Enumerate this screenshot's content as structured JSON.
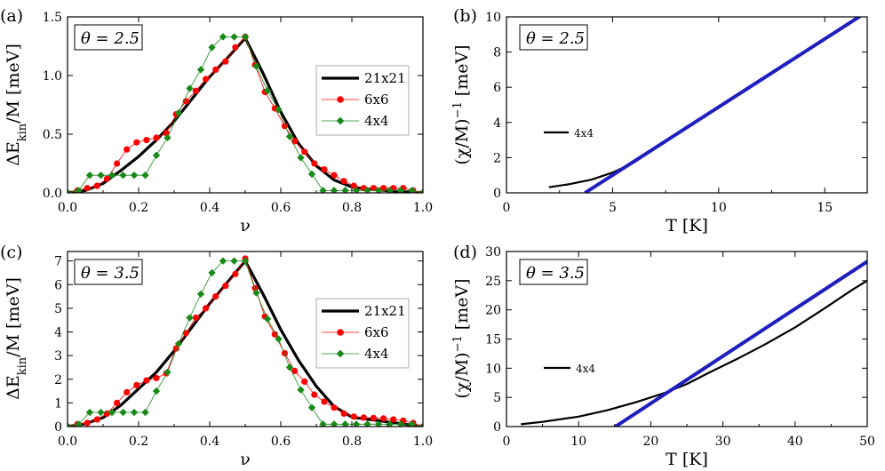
{
  "chart_data": [
    {
      "panel_label": "(a)",
      "type": "line",
      "annotation": "θ = 2.5",
      "xlabel": "ν",
      "ylabel_main": "ΔE",
      "ylabel_sub": "kin",
      "ylabel_rest": "/M [meV]",
      "xlim": [
        0.0,
        1.0
      ],
      "ylim": [
        0.0,
        1.5
      ],
      "xticks": [
        0.0,
        0.2,
        0.4,
        0.6,
        0.8,
        1.0
      ],
      "xtick_labels": [
        "0.0",
        "0.2",
        "0.4",
        "0.6",
        "0.8",
        "1.0"
      ],
      "yticks": [
        0.0,
        0.5,
        1.0,
        1.5
      ],
      "ytick_labels": [
        "0.0",
        "0.5",
        "1.0",
        "1.5"
      ],
      "legend_position": "right",
      "series": [
        {
          "name": "21x21",
          "color": "#000000",
          "style": "thick-line",
          "x": [
            0.0,
            0.05,
            0.1,
            0.15,
            0.2,
            0.25,
            0.3,
            0.35,
            0.4,
            0.45,
            0.5,
            0.55,
            0.6,
            0.65,
            0.7,
            0.75,
            0.8,
            0.85,
            0.9,
            0.95,
            1.0
          ],
          "y": [
            0.0,
            0.02,
            0.08,
            0.19,
            0.31,
            0.45,
            0.61,
            0.8,
            0.99,
            1.15,
            1.32,
            1.02,
            0.69,
            0.42,
            0.23,
            0.11,
            0.05,
            0.03,
            0.02,
            0.01,
            0.0
          ]
        },
        {
          "name": "6x6",
          "color": "#ff0000",
          "style": "circle-markers",
          "x": [
            0.0,
            0.0278,
            0.0556,
            0.0833,
            0.1111,
            0.1389,
            0.1667,
            0.1944,
            0.2222,
            0.25,
            0.2778,
            0.3056,
            0.3333,
            0.3611,
            0.3889,
            0.4167,
            0.4444,
            0.4722,
            0.5,
            0.5278,
            0.5556,
            0.5833,
            0.6111,
            0.6389,
            0.6667,
            0.6944,
            0.7222,
            0.75,
            0.7778,
            0.8056,
            0.8333,
            0.8611,
            0.8889,
            0.9167,
            0.9444,
            0.9722,
            1.0
          ],
          "y": [
            0.0,
            0.02,
            0.04,
            0.06,
            0.12,
            0.25,
            0.37,
            0.43,
            0.45,
            0.47,
            0.51,
            0.67,
            0.78,
            0.87,
            0.97,
            1.05,
            1.12,
            1.24,
            1.33,
            1.09,
            0.86,
            0.72,
            0.57,
            0.44,
            0.35,
            0.25,
            0.2,
            0.15,
            0.1,
            0.06,
            0.04,
            0.04,
            0.04,
            0.04,
            0.04,
            0.02,
            0.0
          ]
        },
        {
          "name": "4x4",
          "color": "#1a8a1a",
          "style": "diamond-markers",
          "x": [
            0.0,
            0.0313,
            0.0625,
            0.0938,
            0.125,
            0.1563,
            0.1875,
            0.2188,
            0.25,
            0.2813,
            0.3125,
            0.3438,
            0.375,
            0.4063,
            0.4375,
            0.4688,
            0.5,
            0.5313,
            0.5625,
            0.5938,
            0.625,
            0.6563,
            0.6875,
            0.7188,
            0.75,
            0.7813,
            0.8125,
            0.8438,
            0.875,
            0.9063,
            0.9375,
            0.9688,
            1.0
          ],
          "y": [
            0.0,
            0.02,
            0.15,
            0.15,
            0.15,
            0.15,
            0.15,
            0.15,
            0.32,
            0.47,
            0.68,
            0.89,
            1.05,
            1.24,
            1.33,
            1.33,
            1.33,
            1.08,
            0.87,
            0.71,
            0.48,
            0.3,
            0.16,
            0.02,
            0.02,
            0.02,
            0.02,
            0.02,
            0.02,
            0.02,
            0.02,
            0.02,
            0.0
          ]
        }
      ],
      "legend_labels": [
        "21x21",
        "6x6",
        "4x4"
      ]
    },
    {
      "panel_label": "(b)",
      "type": "line",
      "annotation": "θ = 2.5",
      "xlabel": "T [K]",
      "ylabel_main": "(χ/M)",
      "ylabel_sup": "−1",
      "ylabel_rest": " [meV]",
      "xlim": [
        0,
        17
      ],
      "ylim": [
        0,
        10
      ],
      "xticks": [
        0,
        5,
        10,
        15
      ],
      "xtick_labels": [
        "0",
        "5",
        "10",
        "15"
      ],
      "yticks": [
        0,
        2,
        4,
        6,
        8,
        10
      ],
      "ytick_labels": [
        "0",
        "2",
        "4",
        "6",
        "8",
        "10"
      ],
      "legend_position": "left-middle",
      "series": [
        {
          "name": "4x4",
          "color": "#000000",
          "style": "line",
          "x": [
            2.0,
            3.0,
            4.0,
            5.0,
            6.0,
            8.0,
            10.0,
            12.0,
            14.0,
            16.0,
            17.0
          ],
          "y": [
            0.32,
            0.5,
            0.75,
            1.15,
            1.72,
            3.3,
            4.85,
            6.4,
            7.95,
            9.5,
            10.3
          ]
        },
        {
          "name": "",
          "color": "#1f1fbf",
          "style": "fit-line",
          "x": [
            3.7,
            17.0
          ],
          "y": [
            0.0,
            10.3
          ]
        }
      ],
      "legend_labels": [
        "4x4"
      ]
    },
    {
      "panel_label": "(c)",
      "type": "line",
      "annotation": "θ = 3.5",
      "xlabel": "ν",
      "ylabel_main": "ΔE",
      "ylabel_sub": "kin",
      "ylabel_rest": "/M [meV]",
      "xlim": [
        0.0,
        1.0
      ],
      "ylim": [
        0,
        7.4
      ],
      "xticks": [
        0.0,
        0.2,
        0.4,
        0.6,
        0.8,
        1.0
      ],
      "xtick_labels": [
        "0.0",
        "0.2",
        "0.4",
        "0.6",
        "0.8",
        "1.0"
      ],
      "yticks": [
        0,
        1,
        2,
        3,
        4,
        5,
        6,
        7
      ],
      "ytick_labels": [
        "0",
        "1",
        "2",
        "3",
        "4",
        "5",
        "6",
        "7"
      ],
      "legend_position": "right",
      "series": [
        {
          "name": "21x21",
          "color": "#000000",
          "style": "thick-line",
          "x": [
            0.0,
            0.05,
            0.1,
            0.15,
            0.2,
            0.25,
            0.3,
            0.35,
            0.4,
            0.45,
            0.5,
            0.55,
            0.6,
            0.65,
            0.7,
            0.75,
            0.8,
            0.85,
            0.9,
            0.95,
            1.0
          ],
          "y": [
            0.0,
            0.12,
            0.38,
            0.9,
            1.6,
            2.3,
            3.2,
            4.2,
            5.2,
            6.1,
            7.0,
            5.6,
            4.1,
            2.8,
            1.7,
            0.85,
            0.4,
            0.3,
            0.2,
            0.1,
            0.0
          ]
        },
        {
          "name": "6x6",
          "color": "#ff0000",
          "style": "circle-markers",
          "x": [
            0.0,
            0.0278,
            0.0556,
            0.0833,
            0.1111,
            0.1389,
            0.1667,
            0.1944,
            0.2222,
            0.25,
            0.2778,
            0.3056,
            0.3333,
            0.3611,
            0.3889,
            0.4167,
            0.4444,
            0.4722,
            0.5,
            0.5278,
            0.5556,
            0.5833,
            0.6111,
            0.6389,
            0.6667,
            0.6944,
            0.7222,
            0.75,
            0.7778,
            0.8056,
            0.8333,
            0.8611,
            0.8889,
            0.9167,
            0.9444,
            0.9722,
            1.0
          ],
          "y": [
            0.0,
            0.1,
            0.15,
            0.3,
            0.55,
            1.0,
            1.45,
            1.75,
            1.95,
            2.05,
            2.25,
            3.3,
            3.95,
            4.6,
            5.0,
            5.5,
            5.95,
            6.45,
            7.1,
            5.85,
            4.65,
            3.9,
            3.1,
            2.35,
            1.9,
            1.35,
            1.05,
            0.8,
            0.55,
            0.42,
            0.38,
            0.36,
            0.34,
            0.3,
            0.25,
            0.15,
            0.0
          ]
        },
        {
          "name": "4x4",
          "color": "#1a8a1a",
          "style": "diamond-markers",
          "x": [
            0.0,
            0.0313,
            0.0625,
            0.0938,
            0.125,
            0.1563,
            0.1875,
            0.2188,
            0.25,
            0.2813,
            0.3125,
            0.3438,
            0.375,
            0.4063,
            0.4375,
            0.4688,
            0.5,
            0.5313,
            0.5625,
            0.5938,
            0.625,
            0.6563,
            0.6875,
            0.7188,
            0.75,
            0.7813,
            0.8125,
            0.8438,
            0.875,
            0.9063,
            0.9375,
            0.9688,
            1.0
          ],
          "y": [
            0.0,
            0.1,
            0.6,
            0.6,
            0.6,
            0.6,
            0.6,
            0.6,
            1.5,
            2.3,
            3.5,
            4.6,
            5.6,
            6.5,
            7.0,
            7.0,
            7.0,
            5.65,
            4.55,
            3.7,
            2.5,
            1.55,
            0.8,
            0.1,
            0.1,
            0.1,
            0.1,
            0.1,
            0.1,
            0.1,
            0.1,
            0.1,
            0.0
          ]
        }
      ],
      "legend_labels": [
        "21x21",
        "6x6",
        "4x4"
      ]
    },
    {
      "panel_label": "(d)",
      "type": "line",
      "annotation": "θ = 3.5",
      "xlabel": "T [K]",
      "ylabel_main": "(χ/M)",
      "ylabel_sup": "−1",
      "ylabel_rest": " [meV]",
      "xlim": [
        0,
        50
      ],
      "ylim": [
        0,
        30
      ],
      "xticks": [
        0,
        10,
        20,
        30,
        40,
        50
      ],
      "xtick_labels": [
        "0",
        "10",
        "20",
        "30",
        "40",
        "50"
      ],
      "yticks": [
        0,
        5,
        10,
        15,
        20,
        25,
        30
      ],
      "ytick_labels": [
        "0",
        "5",
        "10",
        "15",
        "20",
        "25",
        "30"
      ],
      "legend_position": "left-middle",
      "series": [
        {
          "name": "4x4",
          "color": "#000000",
          "style": "line",
          "x": [
            2,
            5,
            10,
            14,
            18,
            22,
            25,
            28,
            32,
            36,
            40,
            44,
            48,
            50
          ],
          "y": [
            0.4,
            0.8,
            1.7,
            2.8,
            4.2,
            5.8,
            7.3,
            9.2,
            11.6,
            14.2,
            17.0,
            20.2,
            23.5,
            25.0
          ]
        },
        {
          "name": "",
          "color": "#1f1fbf",
          "style": "fit-line",
          "x": [
            13.0,
            51.5
          ],
          "y": [
            -1.7,
            29.5
          ]
        }
      ],
      "legend_labels": [
        "4x4"
      ]
    }
  ]
}
